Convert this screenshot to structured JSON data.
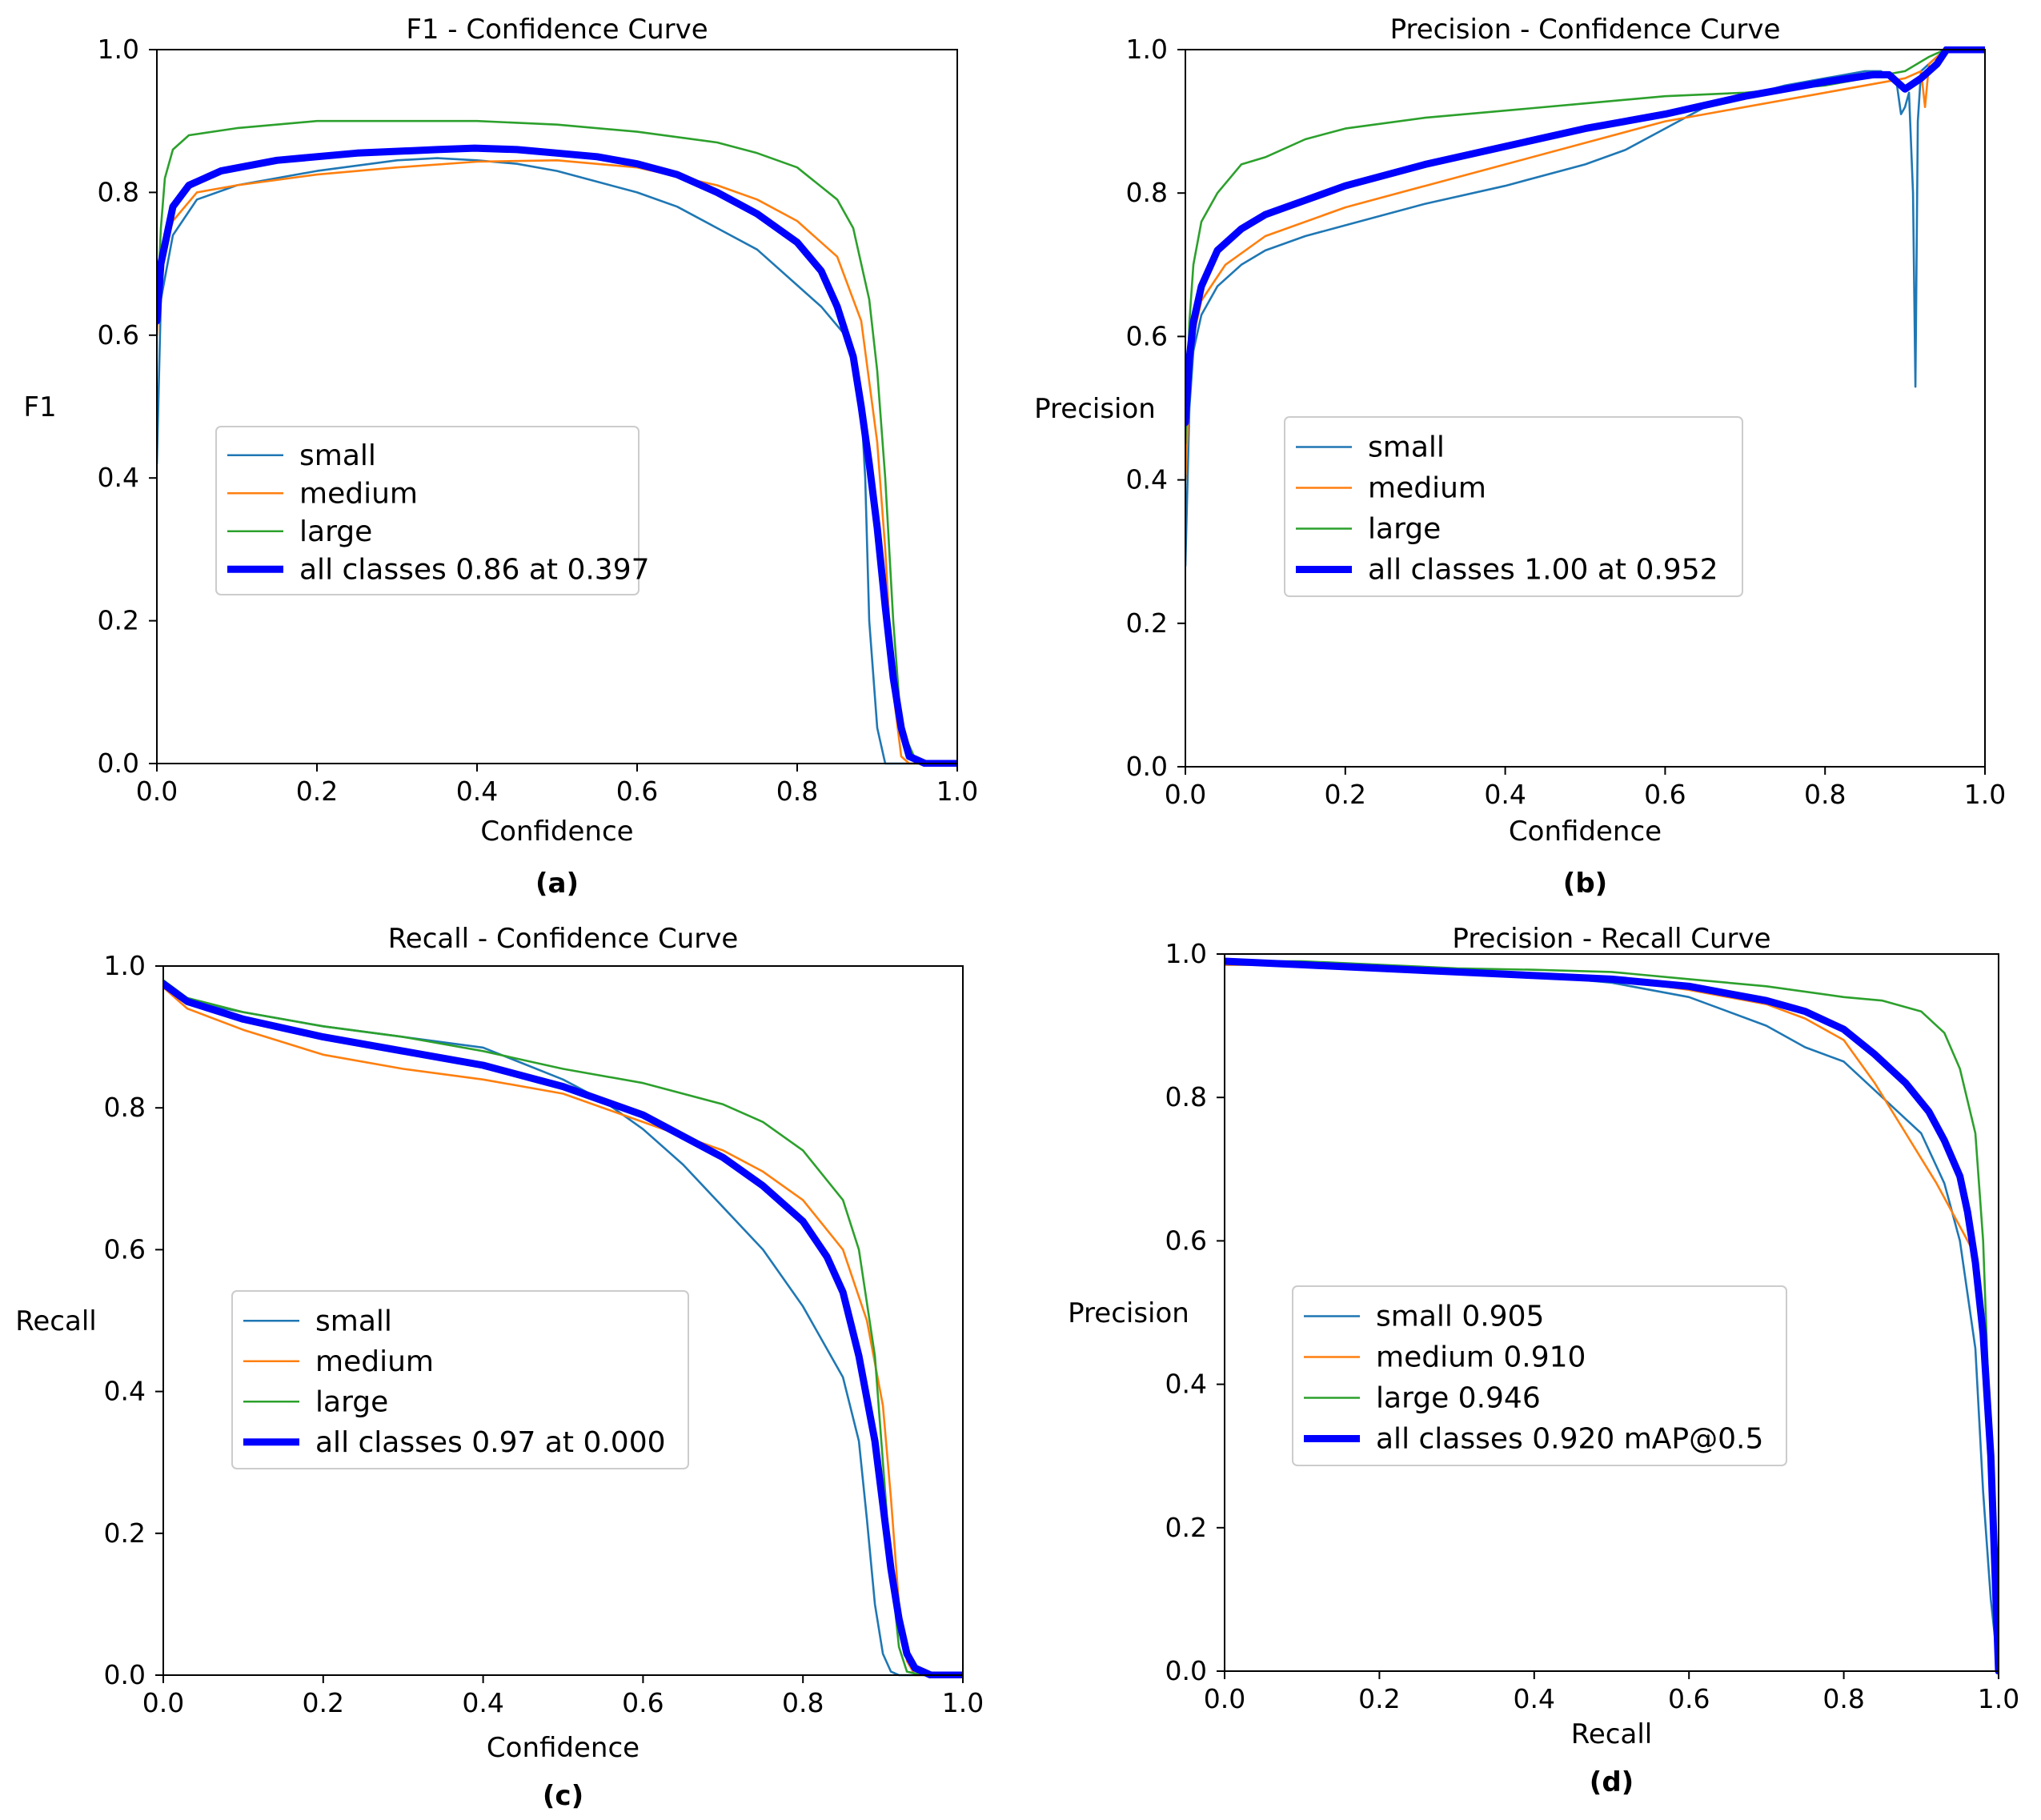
{
  "colors": {
    "small": "#1f77b4",
    "medium": "#ff7f0e",
    "large": "#2ca02c",
    "all": "#0000ff"
  },
  "chart_data": [
    {
      "id": "a",
      "type": "line",
      "panel_label": "(a)",
      "title": "F1 - Confidence Curve",
      "xlabel": "Confidence",
      "ylabel": "F1",
      "xlim": [
        0,
        1
      ],
      "ylim": [
        0,
        1
      ],
      "xticks": [
        "0.0",
        "0.2",
        "0.4",
        "0.6",
        "0.8",
        "1.0"
      ],
      "yticks": [
        "0.0",
        "0.2",
        "0.4",
        "0.6",
        "0.8",
        "1.0"
      ],
      "legend_position": "center-left",
      "series": [
        {
          "name": "small",
          "legend": "small",
          "color_key": "small",
          "x": [
            0,
            0.005,
            0.02,
            0.05,
            0.1,
            0.2,
            0.3,
            0.35,
            0.4,
            0.45,
            0.5,
            0.55,
            0.6,
            0.65,
            0.7,
            0.75,
            0.8,
            0.83,
            0.86,
            0.87,
            0.88,
            0.885,
            0.89,
            0.9,
            0.91,
            1.0
          ],
          "y": [
            0.42,
            0.65,
            0.74,
            0.79,
            0.81,
            0.83,
            0.845,
            0.848,
            0.845,
            0.84,
            0.83,
            0.815,
            0.8,
            0.78,
            0.75,
            0.72,
            0.67,
            0.64,
            0.6,
            0.56,
            0.5,
            0.4,
            0.2,
            0.05,
            0,
            0
          ]
        },
        {
          "name": "medium",
          "legend": "medium",
          "color_key": "medium",
          "x": [
            0,
            0.005,
            0.02,
            0.05,
            0.1,
            0.2,
            0.3,
            0.4,
            0.5,
            0.6,
            0.7,
            0.75,
            0.8,
            0.85,
            0.88,
            0.9,
            0.91,
            0.92,
            0.93,
            0.94,
            1.0
          ],
          "y": [
            0.6,
            0.7,
            0.76,
            0.8,
            0.81,
            0.825,
            0.835,
            0.843,
            0.845,
            0.835,
            0.81,
            0.79,
            0.76,
            0.71,
            0.62,
            0.45,
            0.3,
            0.1,
            0.01,
            0,
            0
          ]
        },
        {
          "name": "large",
          "legend": "large",
          "color_key": "large",
          "x": [
            0,
            0.005,
            0.01,
            0.02,
            0.04,
            0.1,
            0.2,
            0.3,
            0.4,
            0.5,
            0.6,
            0.7,
            0.75,
            0.8,
            0.85,
            0.87,
            0.89,
            0.9,
            0.91,
            0.92,
            0.93,
            0.95,
            1.0
          ],
          "y": [
            0.63,
            0.75,
            0.82,
            0.86,
            0.88,
            0.89,
            0.9,
            0.9,
            0.9,
            0.895,
            0.885,
            0.87,
            0.855,
            0.835,
            0.79,
            0.75,
            0.65,
            0.55,
            0.4,
            0.2,
            0.05,
            0,
            0
          ]
        },
        {
          "name": "all",
          "legend": "all classes 0.86 at 0.397",
          "color_key": "all",
          "bold": true,
          "x": [
            0,
            0.005,
            0.02,
            0.04,
            0.08,
            0.15,
            0.25,
            0.35,
            0.397,
            0.45,
            0.5,
            0.55,
            0.6,
            0.65,
            0.7,
            0.75,
            0.8,
            0.83,
            0.85,
            0.87,
            0.88,
            0.89,
            0.9,
            0.91,
            0.92,
            0.93,
            0.94,
            0.96,
            1.0
          ],
          "y": [
            0.62,
            0.7,
            0.78,
            0.81,
            0.83,
            0.845,
            0.855,
            0.86,
            0.862,
            0.86,
            0.855,
            0.85,
            0.84,
            0.825,
            0.8,
            0.77,
            0.73,
            0.69,
            0.64,
            0.57,
            0.5,
            0.42,
            0.33,
            0.22,
            0.12,
            0.05,
            0.01,
            0,
            0
          ]
        }
      ]
    },
    {
      "id": "b",
      "type": "line",
      "panel_label": "(b)",
      "title": "Precision - Confidence Curve",
      "xlabel": "Confidence",
      "ylabel": "Precision",
      "xlim": [
        0,
        1
      ],
      "ylim": [
        0,
        1
      ],
      "xticks": [
        "0.0",
        "0.2",
        "0.4",
        "0.6",
        "0.8",
        "1.0"
      ],
      "yticks": [
        "0.0",
        "0.2",
        "0.4",
        "0.6",
        "0.8",
        "1.0"
      ],
      "legend_position": "center",
      "series": [
        {
          "name": "small",
          "legend": "small",
          "color_key": "small",
          "x": [
            0,
            0.005,
            0.01,
            0.02,
            0.04,
            0.07,
            0.1,
            0.15,
            0.2,
            0.3,
            0.4,
            0.5,
            0.55,
            0.6,
            0.65,
            0.7,
            0.75,
            0.8,
            0.85,
            0.87,
            0.89,
            0.895,
            0.9,
            0.905,
            0.91,
            0.913,
            0.916,
            0.92,
            0.93,
            0.95,
            1.0
          ],
          "y": [
            0.28,
            0.5,
            0.58,
            0.63,
            0.67,
            0.7,
            0.72,
            0.74,
            0.755,
            0.785,
            0.81,
            0.84,
            0.86,
            0.89,
            0.92,
            0.935,
            0.95,
            0.96,
            0.97,
            0.97,
            0.95,
            0.91,
            0.92,
            0.94,
            0.8,
            0.53,
            0.9,
            0.97,
            0.98,
            1.0,
            1.0
          ]
        },
        {
          "name": "medium",
          "legend": "medium",
          "color_key": "medium",
          "x": [
            0,
            0.005,
            0.01,
            0.02,
            0.05,
            0.1,
            0.2,
            0.3,
            0.4,
            0.5,
            0.6,
            0.7,
            0.8,
            0.9,
            0.92,
            0.925,
            0.93,
            0.94,
            0.95,
            1.0
          ],
          "y": [
            0.4,
            0.52,
            0.6,
            0.65,
            0.7,
            0.74,
            0.78,
            0.81,
            0.84,
            0.87,
            0.9,
            0.92,
            0.94,
            0.96,
            0.97,
            0.92,
            0.98,
            0.99,
            1.0,
            1.0
          ]
        },
        {
          "name": "large",
          "legend": "large",
          "color_key": "large",
          "x": [
            0,
            0.005,
            0.01,
            0.02,
            0.04,
            0.07,
            0.1,
            0.15,
            0.2,
            0.3,
            0.4,
            0.5,
            0.6,
            0.7,
            0.8,
            0.9,
            0.93,
            0.95,
            1.0
          ],
          "y": [
            0.45,
            0.62,
            0.7,
            0.76,
            0.8,
            0.84,
            0.85,
            0.875,
            0.89,
            0.905,
            0.915,
            0.925,
            0.935,
            0.94,
            0.95,
            0.97,
            0.99,
            1.0,
            1.0
          ]
        },
        {
          "name": "all",
          "legend": "all classes 1.00 at 0.952",
          "color_key": "all",
          "bold": true,
          "x": [
            0,
            0.005,
            0.01,
            0.02,
            0.04,
            0.07,
            0.1,
            0.15,
            0.2,
            0.3,
            0.4,
            0.5,
            0.6,
            0.7,
            0.8,
            0.86,
            0.88,
            0.9,
            0.92,
            0.94,
            0.952,
            1.0
          ],
          "y": [
            0.48,
            0.57,
            0.62,
            0.67,
            0.72,
            0.75,
            0.77,
            0.79,
            0.81,
            0.84,
            0.865,
            0.89,
            0.91,
            0.935,
            0.955,
            0.965,
            0.965,
            0.945,
            0.96,
            0.98,
            1.0,
            1.0
          ]
        }
      ]
    },
    {
      "id": "c",
      "type": "line",
      "panel_label": "(c)",
      "title": "Recall - Confidence Curve",
      "xlabel": "Confidence",
      "ylabel": "Recall",
      "xlim": [
        0,
        1
      ],
      "ylim": [
        0,
        1
      ],
      "xticks": [
        "0.0",
        "0.2",
        "0.4",
        "0.6",
        "0.8",
        "1.0"
      ],
      "yticks": [
        "0.0",
        "0.2",
        "0.4",
        "0.6",
        "0.8",
        "1.0"
      ],
      "legend_position": "center-left",
      "series": [
        {
          "name": "small",
          "legend": "small",
          "color_key": "small",
          "x": [
            0,
            0.03,
            0.1,
            0.2,
            0.3,
            0.4,
            0.5,
            0.55,
            0.6,
            0.65,
            0.7,
            0.75,
            0.8,
            0.85,
            0.87,
            0.88,
            0.89,
            0.9,
            0.91,
            0.92,
            1.0
          ],
          "y": [
            0.98,
            0.95,
            0.935,
            0.915,
            0.9,
            0.885,
            0.84,
            0.81,
            0.77,
            0.72,
            0.66,
            0.6,
            0.52,
            0.42,
            0.33,
            0.22,
            0.1,
            0.03,
            0.005,
            0,
            0
          ]
        },
        {
          "name": "medium",
          "legend": "medium",
          "color_key": "medium",
          "x": [
            0,
            0.03,
            0.1,
            0.2,
            0.3,
            0.4,
            0.5,
            0.6,
            0.7,
            0.75,
            0.8,
            0.85,
            0.88,
            0.9,
            0.91,
            0.92,
            0.93,
            0.94,
            1.0
          ],
          "y": [
            0.97,
            0.94,
            0.91,
            0.875,
            0.855,
            0.84,
            0.82,
            0.78,
            0.74,
            0.71,
            0.67,
            0.6,
            0.5,
            0.38,
            0.25,
            0.1,
            0.02,
            0,
            0
          ]
        },
        {
          "name": "large",
          "legend": "large",
          "color_key": "large",
          "x": [
            0,
            0.03,
            0.1,
            0.2,
            0.3,
            0.4,
            0.5,
            0.6,
            0.7,
            0.75,
            0.8,
            0.85,
            0.87,
            0.89,
            0.9,
            0.91,
            0.92,
            0.93,
            0.95,
            1.0
          ],
          "y": [
            0.98,
            0.955,
            0.935,
            0.915,
            0.9,
            0.88,
            0.855,
            0.835,
            0.805,
            0.78,
            0.74,
            0.67,
            0.6,
            0.45,
            0.3,
            0.15,
            0.04,
            0.005,
            0,
            0
          ]
        },
        {
          "name": "all",
          "legend": "all classes 0.97 at 0.000",
          "color_key": "all",
          "bold": true,
          "x": [
            0,
            0.03,
            0.1,
            0.2,
            0.3,
            0.4,
            0.5,
            0.6,
            0.7,
            0.75,
            0.8,
            0.83,
            0.85,
            0.87,
            0.89,
            0.9,
            0.91,
            0.92,
            0.93,
            0.94,
            0.96,
            1.0
          ],
          "y": [
            0.975,
            0.95,
            0.925,
            0.9,
            0.88,
            0.86,
            0.83,
            0.79,
            0.73,
            0.69,
            0.64,
            0.59,
            0.54,
            0.45,
            0.33,
            0.24,
            0.15,
            0.08,
            0.03,
            0.01,
            0,
            0
          ]
        }
      ]
    },
    {
      "id": "d",
      "type": "line",
      "panel_label": "(d)",
      "title": "Precision - Recall Curve",
      "xlabel": "Recall",
      "ylabel": "Precision",
      "xlim": [
        0,
        1
      ],
      "ylim": [
        0,
        1
      ],
      "xticks": [
        "0.0",
        "0.2",
        "0.4",
        "0.6",
        "0.8",
        "1.0"
      ],
      "yticks": [
        "0.0",
        "0.2",
        "0.4",
        "0.6",
        "0.8",
        "1.0"
      ],
      "legend_position": "center-left",
      "series": [
        {
          "name": "small",
          "legend": "small 0.905",
          "color_key": "small",
          "x": [
            0,
            0.1,
            0.2,
            0.3,
            0.4,
            0.5,
            0.55,
            0.6,
            0.65,
            0.7,
            0.75,
            0.8,
            0.85,
            0.9,
            0.93,
            0.95,
            0.97,
            0.98,
            0.99,
            1.0
          ],
          "y": [
            0.985,
            0.985,
            0.98,
            0.975,
            0.97,
            0.96,
            0.95,
            0.94,
            0.92,
            0.9,
            0.87,
            0.85,
            0.8,
            0.75,
            0.68,
            0.6,
            0.45,
            0.25,
            0.1,
            0
          ]
        },
        {
          "name": "medium",
          "legend": "medium 0.910",
          "color_key": "medium",
          "x": [
            0,
            0.1,
            0.2,
            0.3,
            0.4,
            0.5,
            0.6,
            0.7,
            0.75,
            0.8,
            0.84,
            0.88,
            0.92,
            0.95,
            0.97,
            0.98,
            0.99,
            1.0
          ],
          "y": [
            0.985,
            0.985,
            0.98,
            0.975,
            0.97,
            0.965,
            0.95,
            0.93,
            0.91,
            0.88,
            0.82,
            0.75,
            0.68,
            0.62,
            0.58,
            0.5,
            0.3,
            0
          ]
        },
        {
          "name": "large",
          "legend": "large 0.946",
          "color_key": "large",
          "x": [
            0,
            0.1,
            0.2,
            0.3,
            0.4,
            0.5,
            0.6,
            0.7,
            0.8,
            0.85,
            0.9,
            0.93,
            0.95,
            0.97,
            0.98,
            0.99,
            1.0
          ],
          "y": [
            0.99,
            0.99,
            0.985,
            0.98,
            0.978,
            0.975,
            0.965,
            0.955,
            0.94,
            0.935,
            0.92,
            0.89,
            0.84,
            0.75,
            0.6,
            0.3,
            0
          ]
        },
        {
          "name": "all",
          "legend": "all classes 0.920 mAP@0.5",
          "color_key": "all",
          "bold": true,
          "x": [
            0,
            0.1,
            0.2,
            0.3,
            0.4,
            0.5,
            0.6,
            0.65,
            0.7,
            0.75,
            0.8,
            0.84,
            0.88,
            0.91,
            0.93,
            0.95,
            0.96,
            0.97,
            0.98,
            0.99,
            1.0
          ],
          "y": [
            0.99,
            0.985,
            0.98,
            0.975,
            0.97,
            0.965,
            0.955,
            0.945,
            0.935,
            0.92,
            0.895,
            0.86,
            0.82,
            0.78,
            0.74,
            0.69,
            0.64,
            0.57,
            0.47,
            0.3,
            0
          ]
        }
      ]
    }
  ]
}
